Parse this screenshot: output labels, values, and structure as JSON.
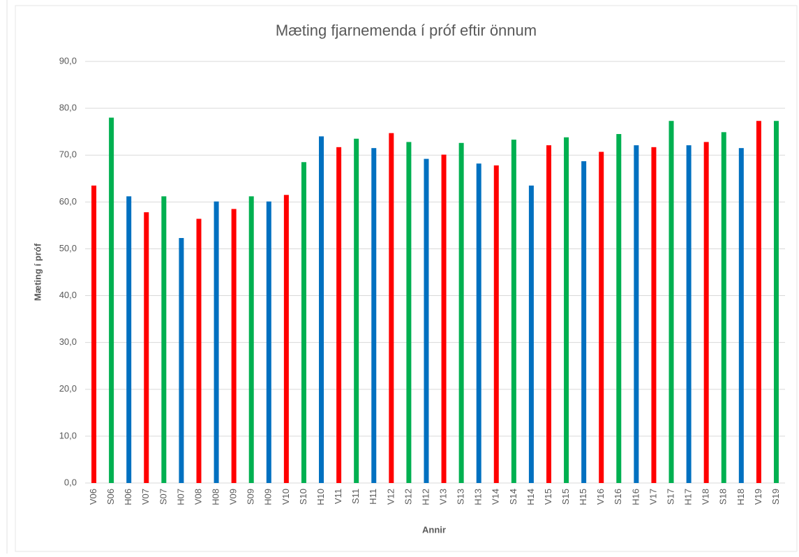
{
  "chart_data": {
    "type": "bar",
    "title": "Mæting fjarnemenda í próf eftir önnum",
    "y_label": "Mæting í próf",
    "x_label": "Annir",
    "categories": [
      "V06",
      "S06",
      "H06",
      "V07",
      "S07",
      "H07",
      "V08",
      "H08",
      "V09",
      "S09",
      "H09",
      "V10",
      "S10",
      "H10",
      "V11",
      "S11",
      "H11",
      "V12",
      "S12",
      "H12",
      "V13",
      "S13",
      "H13",
      "V14",
      "S14",
      "H14",
      "V15",
      "S15",
      "H15",
      "V16",
      "S16",
      "H16",
      "V17",
      "S17",
      "H17",
      "V18",
      "S18",
      "H18",
      "V19",
      "S19"
    ],
    "values": [
      63.5,
      78,
      61.2,
      57.8,
      61.2,
      52.3,
      56.4,
      60.1,
      58.5,
      61.2,
      60.1,
      61.5,
      68.5,
      74,
      71.7,
      73.5,
      71.5,
      74.7,
      72.8,
      69.2,
      70.1,
      72.6,
      68.2,
      67.8,
      73.3,
      63.5,
      72.1,
      73.8,
      68.7,
      70.7,
      74.5,
      72.1,
      71.7,
      77.3,
      72.1,
      72.8,
      74.9,
      71.5,
      77.3,
      77.3
    ],
    "colors": [
      "#ff0000",
      "#00b050",
      "#0070c0",
      "#ff0000",
      "#00b050",
      "#0070c0",
      "#ff0000",
      "#0070c0",
      "#ff0000",
      "#00b050",
      "#0070c0",
      "#ff0000",
      "#00b050",
      "#0070c0",
      "#ff0000",
      "#00b050",
      "#0070c0",
      "#ff0000",
      "#00b050",
      "#0070c0",
      "#ff0000",
      "#00b050",
      "#0070c0",
      "#ff0000",
      "#00b050",
      "#0070c0",
      "#ff0000",
      "#00b050",
      "#0070c0",
      "#ff0000",
      "#00b050",
      "#0070c0",
      "#ff0000",
      "#00b050",
      "#0070c0",
      "#ff0000",
      "#00b050",
      "#0070c0",
      "#ff0000",
      "#00b050"
    ],
    "ylim": [
      0,
      90
    ],
    "yticks": [
      {
        "value": 0,
        "label": "0,0"
      },
      {
        "value": 10,
        "label": "10,0"
      },
      {
        "value": 20,
        "label": "20,0"
      },
      {
        "value": 30,
        "label": "30,0"
      },
      {
        "value": 40,
        "label": "40,0"
      },
      {
        "value": 50,
        "label": "50,0"
      },
      {
        "value": 60,
        "label": "60,0"
      },
      {
        "value": 70,
        "label": "70,0"
      },
      {
        "value": 80,
        "label": "80,0"
      },
      {
        "value": 90,
        "label": "90,0"
      }
    ],
    "grid": true
  }
}
